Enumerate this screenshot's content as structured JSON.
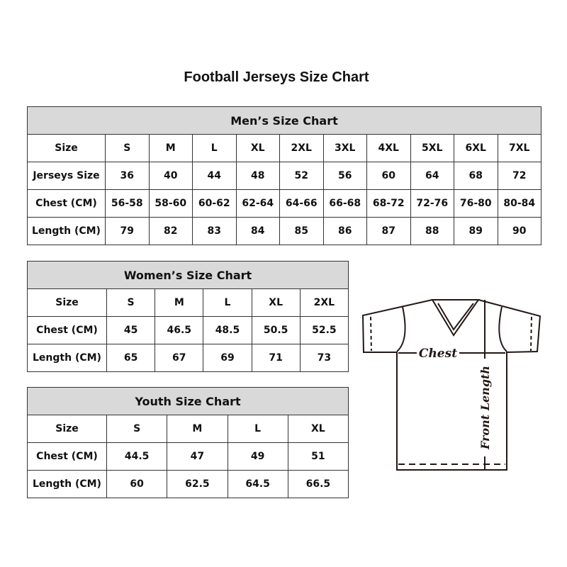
{
  "title": "Football Jerseys Size Chart",
  "men": {
    "title": "Men’s Size Chart",
    "rows": [
      {
        "label": "Size",
        "values": [
          "S",
          "M",
          "L",
          "XL",
          "2XL",
          "3XL",
          "4XL",
          "5XL",
          "6XL",
          "7XL"
        ]
      },
      {
        "label": "Jerseys Size",
        "values": [
          "36",
          "40",
          "44",
          "48",
          "52",
          "56",
          "60",
          "64",
          "68",
          "72"
        ]
      },
      {
        "label": "Chest (CM)",
        "values": [
          "56-58",
          "58-60",
          "60-62",
          "62-64",
          "64-66",
          "66-68",
          "68-72",
          "72-76",
          "76-80",
          "80-84"
        ]
      },
      {
        "label": "Length (CM)",
        "values": [
          "79",
          "82",
          "83",
          "84",
          "85",
          "86",
          "87",
          "88",
          "89",
          "90"
        ]
      }
    ]
  },
  "women": {
    "title": "Women’s Size Chart",
    "rows": [
      {
        "label": "Size",
        "values": [
          "S",
          "M",
          "L",
          "XL",
          "2XL"
        ]
      },
      {
        "label": "Chest (CM)",
        "values": [
          "45",
          "46.5",
          "48.5",
          "50.5",
          "52.5"
        ]
      },
      {
        "label": "Length (CM)",
        "values": [
          "65",
          "67",
          "69",
          "71",
          "73"
        ]
      }
    ]
  },
  "youth": {
    "title": "Youth Size Chart",
    "rows": [
      {
        "label": "Size",
        "values": [
          "S",
          "M",
          "L",
          "XL"
        ]
      },
      {
        "label": "Chest (CM)",
        "values": [
          "44.5",
          "47",
          "49",
          "51"
        ]
      },
      {
        "label": "Length (CM)",
        "values": [
          "60",
          "62.5",
          "64.5",
          "66.5"
        ]
      }
    ]
  },
  "diagram": {
    "chest_label": "Chest",
    "length_label": "Front Length"
  },
  "colors": {
    "header_fill": "#d9d9d9",
    "line": "#231815"
  }
}
